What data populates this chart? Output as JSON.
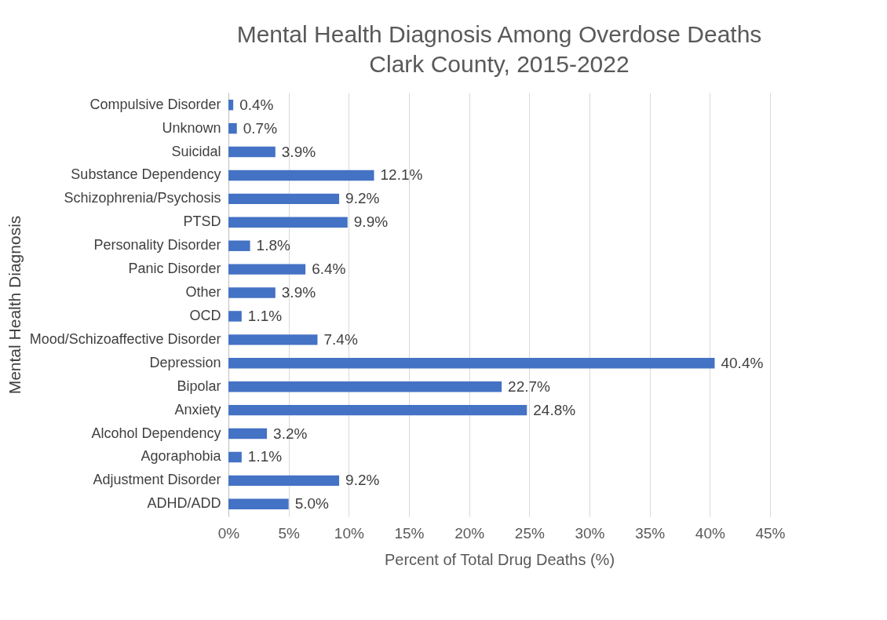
{
  "chart_data": {
    "type": "bar",
    "orientation": "horizontal",
    "title": "Mental Health Diagnosis Among Overdose Deaths",
    "subtitle": "Clark County, 2015-2022",
    "xlabel": "Percent of Total Drug Deaths (%)",
    "ylabel": "Mental Health Diagnosis",
    "categories": [
      "Compulsive Disorder",
      "Unknown",
      "Suicidal",
      "Substance Dependency",
      "Schizophrenia/Psychosis",
      "PTSD",
      "Personality Disorder",
      "Panic Disorder",
      "Other",
      "OCD",
      "Mood/Schizoaffective Disorder",
      "Depression",
      "Bipolar",
      "Anxiety",
      "Alcohol Dependency",
      "Agoraphobia",
      "Adjustment Disorder",
      "ADHD/ADD"
    ],
    "values": [
      0.4,
      0.7,
      3.9,
      12.1,
      9.2,
      9.9,
      1.8,
      6.4,
      3.9,
      1.1,
      7.4,
      40.4,
      22.7,
      24.8,
      3.2,
      1.1,
      9.2,
      5.0
    ],
    "value_labels": [
      "0.4%",
      "0.7%",
      "3.9%",
      "12.1%",
      "9.2%",
      "9.9%",
      "1.8%",
      "6.4%",
      "3.9%",
      "1.1%",
      "7.4%",
      "40.4%",
      "22.7%",
      "24.8%",
      "3.2%",
      "1.1%",
      "9.2%",
      "5.0%"
    ],
    "color": "#4472c4",
    "xlim": [
      0,
      45
    ],
    "xticks": [
      {
        "value": 0,
        "label": "0%"
      },
      {
        "value": 5,
        "label": "5%"
      },
      {
        "value": 10,
        "label": "10%"
      },
      {
        "value": 15,
        "label": "15%"
      },
      {
        "value": 20,
        "label": "20%"
      },
      {
        "value": 25,
        "label": "25%"
      },
      {
        "value": 30,
        "label": "30%"
      },
      {
        "value": 35,
        "label": "35%"
      },
      {
        "value": 40,
        "label": "40%"
      },
      {
        "value": 45,
        "label": "45%"
      }
    ],
    "grid": "x"
  }
}
